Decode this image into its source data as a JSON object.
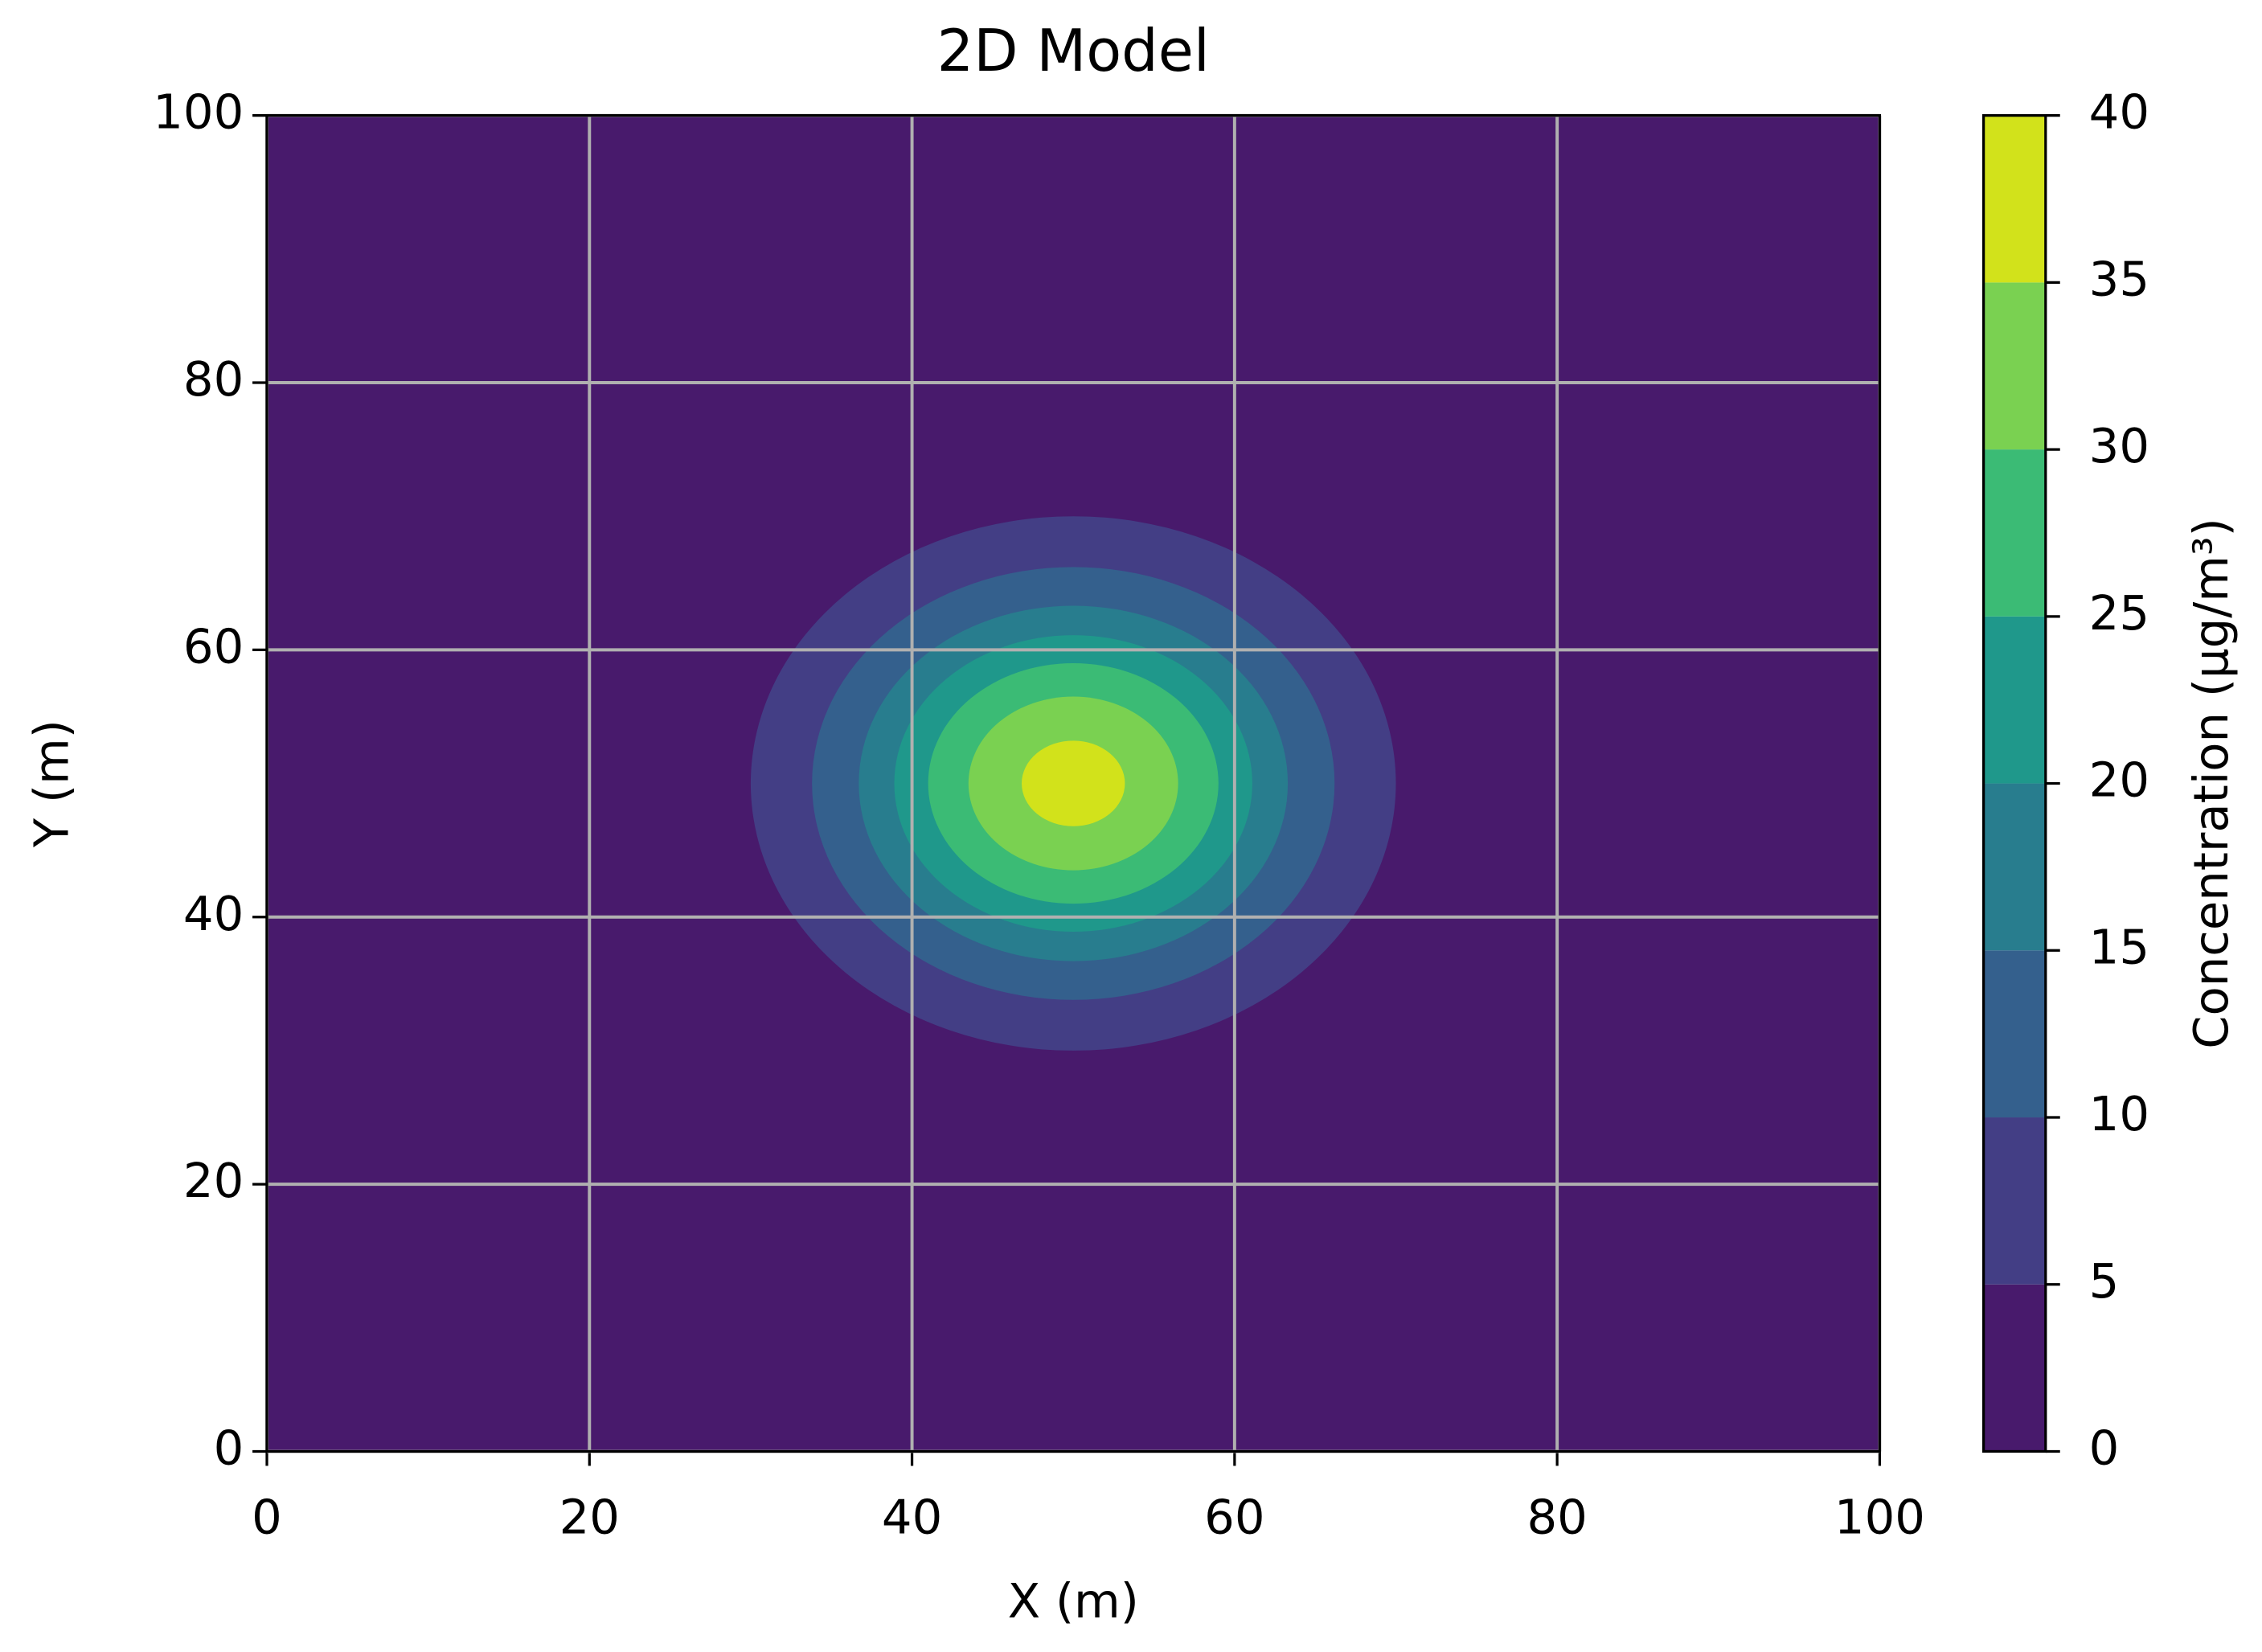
{
  "chart_data": {
    "type": "contour",
    "title": "2D Model",
    "x_label": "X (m)",
    "y_label": "Y (m)",
    "colorbar_label": "Concentration (μg/m³)",
    "center": [
      50,
      50
    ],
    "levels": [
      0,
      5,
      10,
      15,
      20,
      25,
      30,
      35,
      40
    ],
    "colors": [
      "#481a6c",
      "#433e85",
      "#34608d",
      "#287d8e",
      "#1f988b",
      "#3bbb75",
      "#7ad151",
      "#d2e21b"
    ],
    "radii": [
      20,
      16.2,
      13.3,
      11.1,
      9,
      6.5,
      3.2
    ],
    "xlim": [
      0,
      100
    ],
    "ylim": [
      0,
      100
    ],
    "xticks": [
      0,
      20,
      40,
      60,
      80,
      100
    ],
    "yticks": [
      0,
      20,
      40,
      60,
      80,
      100
    ],
    "grid": true
  }
}
